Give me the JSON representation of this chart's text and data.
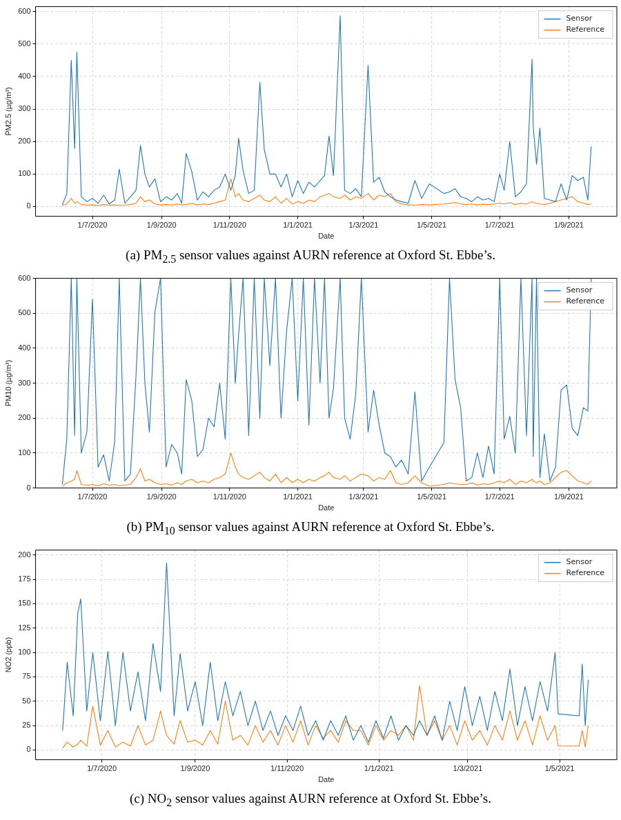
{
  "chart_data": [
    {
      "type": "line",
      "xlabel": "Date",
      "ylabel": "PM2.5 (µg/m³)",
      "legend": "top right",
      "grid": true,
      "annotations": [
        "(a) PM$_{2.5}$ sensor values against AURN reference at Oxford St. Ebbe’s."
      ],
      "xlim": [
        "2020-05-11",
        "2021-10-14"
      ],
      "ylim": [
        -30,
        615
      ],
      "xticks": [
        {
          "value": "2020-07-01",
          "label": "1/7/2020"
        },
        {
          "value": "2020-09-01",
          "label": "1/9/2020"
        },
        {
          "value": "2020-11-01",
          "label": "1/11/2020"
        },
        {
          "value": "2021-01-01",
          "label": "1/1/2021"
        },
        {
          "value": "2021-03-01",
          "label": "1/3/2021"
        },
        {
          "value": "2021-05-01",
          "label": "1/5/2021"
        },
        {
          "value": "2021-07-01",
          "label": "1/7/2021"
        },
        {
          "value": "2021-09-01",
          "label": "1/9/2021"
        }
      ],
      "yticks": [
        0,
        100,
        200,
        300,
        400,
        500,
        600
      ],
      "x": [
        "2020-06-04",
        "2020-06-08",
        "2020-06-12",
        "2020-06-15",
        "2020-06-17",
        "2020-06-21",
        "2020-06-26",
        "2020-07-01",
        "2020-07-06",
        "2020-07-11",
        "2020-07-16",
        "2020-07-21",
        "2020-07-25",
        "2020-07-30",
        "2020-08-04",
        "2020-08-09",
        "2020-08-13",
        "2020-08-17",
        "2020-08-21",
        "2020-08-26",
        "2020-08-31",
        "2020-09-05",
        "2020-09-10",
        "2020-09-15",
        "2020-09-19",
        "2020-09-23",
        "2020-09-28",
        "2020-10-03",
        "2020-10-08",
        "2020-10-13",
        "2020-10-18",
        "2020-10-23",
        "2020-10-28",
        "2020-11-02",
        "2020-11-06",
        "2020-11-09",
        "2020-11-13",
        "2020-11-18",
        "2020-11-23",
        "2020-11-28",
        "2020-12-02",
        "2020-12-07",
        "2020-12-12",
        "2020-12-17",
        "2020-12-22",
        "2020-12-27",
        "2021-01-01",
        "2021-01-06",
        "2021-01-11",
        "2021-01-16",
        "2021-01-21",
        "2021-01-25",
        "2021-01-29",
        "2021-02-02",
        "2021-02-08",
        "2021-02-12",
        "2021-02-17",
        "2021-02-22",
        "2021-02-27",
        "2021-03-05",
        "2021-03-10",
        "2021-03-15",
        "2021-03-20",
        "2021-03-25",
        "2021-03-30",
        "2021-04-04",
        "2021-04-10",
        "2021-04-16",
        "2021-04-22",
        "2021-04-29",
        "2021-05-12",
        "2021-05-17",
        "2021-05-22",
        "2021-05-27",
        "2021-06-01",
        "2021-06-06",
        "2021-06-11",
        "2021-06-16",
        "2021-06-21",
        "2021-06-26",
        "2021-07-01",
        "2021-07-05",
        "2021-07-10",
        "2021-07-15",
        "2021-07-20",
        "2021-07-25",
        "2021-07-30",
        "2021-07-31",
        "2021-08-03",
        "2021-08-06",
        "2021-08-10",
        "2021-08-15",
        "2021-08-20",
        "2021-08-25",
        "2021-08-30",
        "2021-09-04",
        "2021-09-09",
        "2021-09-14",
        "2021-09-18",
        "2021-09-21"
      ],
      "series": [
        {
          "name": "Sensor",
          "color": "#1f77b4",
          "values": [
            5,
            40,
            450,
            178,
            475,
            30,
            15,
            25,
            10,
            35,
            8,
            20,
            115,
            10,
            30,
            50,
            188,
            100,
            60,
            85,
            15,
            30,
            20,
            40,
            10,
            163,
            108,
            20,
            45,
            30,
            50,
            60,
            100,
            50,
            95,
            210,
            110,
            40,
            50,
            382,
            175,
            100,
            100,
            60,
            100,
            30,
            80,
            40,
            75,
            60,
            80,
            95,
            217,
            95,
            587,
            50,
            40,
            55,
            30,
            435,
            75,
            90,
            45,
            30,
            20,
            15,
            10,
            80,
            25,
            70,
            40,
            45,
            55,
            30,
            25,
            15,
            30,
            20,
            25,
            15,
            100,
            50,
            200,
            30,
            45,
            70,
            453,
            247,
            130,
            241,
            25,
            20,
            15,
            70,
            20,
            95,
            80,
            90,
            20,
            185
          ]
        },
        {
          "name": "Reference",
          "color": "#ff7f0e",
          "values": [
            3,
            8,
            25,
            10,
            15,
            6,
            4,
            5,
            3,
            6,
            4,
            5,
            3,
            4,
            6,
            10,
            30,
            15,
            20,
            8,
            5,
            6,
            4,
            8,
            5,
            6,
            10,
            5,
            8,
            6,
            10,
            15,
            20,
            85,
            30,
            40,
            20,
            15,
            25,
            35,
            20,
            15,
            30,
            10,
            25,
            8,
            15,
            10,
            20,
            15,
            30,
            35,
            40,
            30,
            25,
            35,
            20,
            30,
            25,
            40,
            20,
            35,
            30,
            40,
            15,
            8,
            5,
            4,
            6,
            5,
            8,
            10,
            12,
            8,
            6,
            8,
            5,
            7,
            6,
            8,
            10,
            8,
            12,
            6,
            10,
            8,
            15,
            12,
            10,
            8,
            6,
            10,
            15,
            20,
            25,
            30,
            15,
            10,
            6,
            8
          ]
        }
      ]
    },
    {
      "type": "line",
      "xlabel": "Date",
      "ylabel": "PM10 (µg/m³)",
      "legend": "top right",
      "grid": true,
      "annotations": [
        "(b) PM$_{10}$ sensor values against AURN reference at Oxford St. Ebbe’s."
      ],
      "xlim": [
        "2020-05-11",
        "2021-10-14"
      ],
      "ylim": [
        0,
        600
      ],
      "xticks": [
        {
          "value": "2020-07-01",
          "label": "1/7/2020"
        },
        {
          "value": "2020-09-01",
          "label": "1/9/2020"
        },
        {
          "value": "2020-11-01",
          "label": "1/11/2020"
        },
        {
          "value": "2021-01-01",
          "label": "1/1/2021"
        },
        {
          "value": "2021-03-01",
          "label": "1/3/2021"
        },
        {
          "value": "2021-05-01",
          "label": "1/5/2021"
        },
        {
          "value": "2021-07-01",
          "label": "1/7/2021"
        },
        {
          "value": "2021-09-01",
          "label": "1/9/2021"
        }
      ],
      "yticks": [
        0,
        100,
        200,
        300,
        400,
        500,
        600
      ],
      "x": [
        "2020-06-04",
        "2020-06-08",
        "2020-06-12",
        "2020-06-15",
        "2020-06-17",
        "2020-06-21",
        "2020-06-26",
        "2020-07-01",
        "2020-07-06",
        "2020-07-11",
        "2020-07-16",
        "2020-07-21",
        "2020-07-25",
        "2020-07-30",
        "2020-08-04",
        "2020-08-09",
        "2020-08-13",
        "2020-08-17",
        "2020-08-21",
        "2020-08-26",
        "2020-08-31",
        "2020-09-05",
        "2020-09-10",
        "2020-09-15",
        "2020-09-19",
        "2020-09-23",
        "2020-09-28",
        "2020-10-03",
        "2020-10-08",
        "2020-10-13",
        "2020-10-18",
        "2020-10-23",
        "2020-10-28",
        "2020-11-02",
        "2020-11-06",
        "2020-11-09",
        "2020-11-13",
        "2020-11-18",
        "2020-11-23",
        "2020-11-28",
        "2020-12-02",
        "2020-12-07",
        "2020-12-12",
        "2020-12-17",
        "2020-12-22",
        "2020-12-27",
        "2021-01-01",
        "2021-01-06",
        "2021-01-11",
        "2021-01-16",
        "2021-01-21",
        "2021-01-25",
        "2021-01-29",
        "2021-02-02",
        "2021-02-08",
        "2021-02-12",
        "2021-02-17",
        "2021-02-22",
        "2021-02-27",
        "2021-03-05",
        "2021-03-10",
        "2021-03-15",
        "2021-03-20",
        "2021-03-25",
        "2021-03-30",
        "2021-04-04",
        "2021-04-10",
        "2021-04-16",
        "2021-04-22",
        "2021-04-29",
        "2021-05-12",
        "2021-05-17",
        "2021-05-22",
        "2021-05-27",
        "2021-06-01",
        "2021-06-06",
        "2021-06-11",
        "2021-06-16",
        "2021-06-21",
        "2021-06-26",
        "2021-07-01",
        "2021-07-05",
        "2021-07-10",
        "2021-07-15",
        "2021-07-20",
        "2021-07-25",
        "2021-07-30",
        "2021-07-31",
        "2021-08-03",
        "2021-08-06",
        "2021-08-10",
        "2021-08-15",
        "2021-08-20",
        "2021-08-25",
        "2021-08-30",
        "2021-09-04",
        "2021-09-09",
        "2021-09-14",
        "2021-09-18",
        "2021-09-21"
      ],
      "series": [
        {
          "name": "Sensor",
          "color": "#1f77b4",
          "values": [
            10,
            140,
            600,
            150,
            600,
            100,
            160,
            540,
            60,
            95,
            20,
            135,
            600,
            20,
            40,
            320,
            600,
            300,
            160,
            505,
            600,
            60,
            125,
            100,
            40,
            310,
            250,
            90,
            110,
            200,
            175,
            300,
            140,
            600,
            300,
            440,
            600,
            150,
            600,
            200,
            600,
            350,
            600,
            200,
            450,
            600,
            250,
            600,
            180,
            600,
            300,
            600,
            200,
            285,
            600,
            200,
            140,
            270,
            600,
            160,
            280,
            180,
            100,
            90,
            60,
            80,
            40,
            275,
            20,
            60,
            130,
            600,
            310,
            230,
            20,
            30,
            100,
            30,
            120,
            40,
            600,
            140,
            205,
            100,
            600,
            150,
            600,
            90,
            600,
            30,
            155,
            20,
            60,
            280,
            295,
            170,
            150,
            230,
            220,
            600
          ]
        },
        {
          "name": "Reference",
          "color": "#ff7f0e",
          "values": [
            5,
            15,
            20,
            25,
            50,
            10,
            8,
            10,
            6,
            12,
            8,
            10,
            6,
            8,
            10,
            30,
            55,
            20,
            25,
            15,
            10,
            12,
            8,
            15,
            10,
            20,
            25,
            15,
            20,
            15,
            25,
            30,
            40,
            100,
            60,
            40,
            30,
            25,
            35,
            45,
            30,
            20,
            40,
            15,
            30,
            15,
            25,
            15,
            25,
            20,
            30,
            35,
            45,
            30,
            25,
            35,
            20,
            30,
            40,
            35,
            20,
            30,
            25,
            50,
            15,
            10,
            15,
            35,
            15,
            5,
            10,
            15,
            12,
            10,
            10,
            15,
            8,
            12,
            10,
            15,
            20,
            15,
            25,
            10,
            20,
            15,
            25,
            20,
            15,
            20,
            10,
            15,
            30,
            45,
            50,
            35,
            20,
            15,
            10,
            20
          ]
        }
      ]
    },
    {
      "type": "line",
      "xlabel": "Date",
      "ylabel": "NO2 (ppb)",
      "legend": "top right",
      "grid": true,
      "annotations": [
        "(c) NO$_{2}$ sensor values against AURN reference at Oxford St. Ebbe’s."
      ],
      "xlim": [
        "2020-05-18",
        "2021-06-08"
      ],
      "ylim": [
        -10,
        205
      ],
      "xticks": [
        {
          "value": "2020-07-01",
          "label": "1/7/2020"
        },
        {
          "value": "2020-09-01",
          "label": "1/9/2020"
        },
        {
          "value": "2020-11-01",
          "label": "1/11/2020"
        },
        {
          "value": "2021-01-01",
          "label": "1/1/2021"
        },
        {
          "value": "2021-03-01",
          "label": "1/3/2021"
        },
        {
          "value": "2021-05-01",
          "label": "1/5/2021"
        }
      ],
      "yticks": [
        0,
        25,
        50,
        75,
        100,
        125,
        150,
        175,
        200
      ],
      "x": [
        "2020-06-05",
        "2020-06-08",
        "2020-06-12",
        "2020-06-15",
        "2020-06-17",
        "2020-06-21",
        "2020-06-25",
        "2020-06-30",
        "2020-07-05",
        "2020-07-10",
        "2020-07-15",
        "2020-07-20",
        "2020-07-25",
        "2020-07-30",
        "2020-08-04",
        "2020-08-09",
        "2020-08-13",
        "2020-08-18",
        "2020-08-22",
        "2020-08-27",
        "2020-09-01",
        "2020-09-06",
        "2020-09-11",
        "2020-09-16",
        "2020-09-21",
        "2020-09-26",
        "2020-10-01",
        "2020-10-06",
        "2020-10-11",
        "2020-10-16",
        "2020-10-21",
        "2020-10-26",
        "2020-10-31",
        "2020-11-05",
        "2020-11-10",
        "2020-11-15",
        "2020-11-20",
        "2020-11-25",
        "2020-11-30",
        "2020-12-05",
        "2020-12-10",
        "2020-12-15",
        "2020-12-20",
        "2020-12-25",
        "2020-12-30",
        "2021-01-04",
        "2021-01-09",
        "2021-01-14",
        "2021-01-19",
        "2021-01-24",
        "2021-01-28",
        "2021-02-02",
        "2021-02-07",
        "2021-02-12",
        "2021-02-17",
        "2021-02-22",
        "2021-02-27",
        "2021-03-04",
        "2021-03-09",
        "2021-03-14",
        "2021-03-19",
        "2021-03-24",
        "2021-03-29",
        "2021-04-03",
        "2021-04-08",
        "2021-04-13",
        "2021-04-18",
        "2021-04-23",
        "2021-04-28",
        "2021-04-30",
        "2021-05-14",
        "2021-05-16",
        "2021-05-18",
        "2021-05-20"
      ],
      "series": [
        {
          "name": "Sensor",
          "color": "#1f77b4",
          "values": [
            20,
            90,
            35,
            140,
            155,
            40,
            100,
            30,
            101,
            25,
            100,
            40,
            80,
            30,
            109,
            60,
            192,
            35,
            99,
            40,
            70,
            25,
            90,
            30,
            70,
            35,
            60,
            25,
            50,
            20,
            40,
            15,
            35,
            20,
            45,
            15,
            30,
            10,
            30,
            15,
            35,
            10,
            25,
            8,
            30,
            12,
            35,
            10,
            25,
            15,
            30,
            15,
            35,
            10,
            50,
            20,
            65,
            25,
            55,
            20,
            60,
            30,
            83,
            25,
            65,
            30,
            70,
            40,
            100,
            37,
            35,
            88,
            25,
            72
          ]
        },
        {
          "name": "Reference",
          "color": "#ff7f0e",
          "values": [
            2,
            8,
            3,
            6,
            10,
            4,
            45,
            5,
            20,
            3,
            8,
            4,
            25,
            5,
            10,
            40,
            15,
            6,
            30,
            8,
            10,
            5,
            20,
            6,
            50,
            10,
            15,
            5,
            25,
            8,
            20,
            5,
            25,
            8,
            30,
            5,
            25,
            12,
            20,
            8,
            30,
            20,
            20,
            5,
            25,
            10,
            20,
            15,
            25,
            10,
            66,
            15,
            30,
            10,
            25,
            5,
            30,
            10,
            20,
            5,
            25,
            10,
            40,
            10,
            30,
            5,
            35,
            10,
            25,
            4,
            4,
            20,
            3,
            25
          ]
        }
      ]
    }
  ]
}
